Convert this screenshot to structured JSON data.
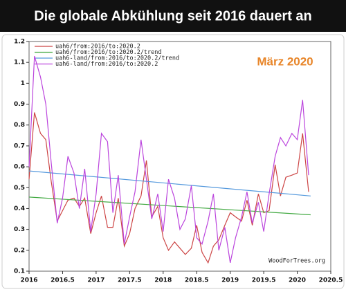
{
  "chart_data": {
    "type": "line",
    "title": "Die globale Abkühlung seit 2016 dauert an",
    "annotation": "März 2020",
    "source": "WoodForTrees.org",
    "x": [
      2016,
      2016.08,
      2016.17,
      2016.25,
      2016.33,
      2016.42,
      2016.5,
      2016.58,
      2016.67,
      2016.75,
      2016.83,
      2016.92,
      2017,
      2017.08,
      2017.17,
      2017.25,
      2017.33,
      2017.42,
      2017.5,
      2017.58,
      2017.67,
      2017.75,
      2017.83,
      2017.92,
      2018,
      2018.08,
      2018.17,
      2018.25,
      2018.33,
      2018.42,
      2018.5,
      2018.58,
      2018.67,
      2018.75,
      2018.83,
      2018.92,
      2019,
      2019.08,
      2019.17,
      2019.25,
      2019.33,
      2019.42,
      2019.5,
      2019.58,
      2019.67,
      2019.75,
      2019.83,
      2019.92,
      2020,
      2020.08,
      2020.17
    ],
    "series": [
      {
        "name": "uah6/from:2016/to:2020.2",
        "color": "#cc4444",
        "values": [
          0.54,
          0.86,
          0.76,
          0.73,
          0.53,
          0.34,
          0.39,
          0.44,
          0.45,
          0.41,
          0.45,
          0.28,
          0.38,
          0.46,
          0.31,
          0.31,
          0.45,
          0.22,
          0.28,
          0.4,
          0.46,
          0.63,
          0.36,
          0.41,
          0.26,
          0.2,
          0.24,
          0.21,
          0.18,
          0.21,
          0.32,
          0.19,
          0.14,
          0.22,
          0.25,
          0.32,
          0.38,
          0.36,
          0.34,
          0.44,
          0.32,
          0.47,
          0.38,
          0.39,
          0.61,
          0.46,
          0.55,
          0.56,
          0.57,
          0.76,
          0.48
        ]
      },
      {
        "name": "uah6/from:2016/to:2020.2/trend",
        "color": "#44aa44",
        "x": [
          2016,
          2020.2
        ],
        "values": [
          0.455,
          0.37
        ]
      },
      {
        "name": "uah6-land/from:2016/to:2020.2/trend",
        "color": "#5599dd",
        "x": [
          2016,
          2020.2
        ],
        "values": [
          0.58,
          0.46
        ]
      },
      {
        "name": "uah6-land/from:2016/to:2020.2",
        "color": "#bb44dd",
        "values": [
          0.6,
          1.13,
          1.03,
          0.9,
          0.62,
          0.33,
          0.45,
          0.65,
          0.57,
          0.4,
          0.59,
          0.29,
          0.47,
          0.76,
          0.72,
          0.38,
          0.56,
          0.23,
          0.36,
          0.48,
          0.73,
          0.54,
          0.35,
          0.47,
          0.29,
          0.54,
          0.45,
          0.3,
          0.35,
          0.51,
          0.26,
          0.23,
          0.34,
          0.47,
          0.2,
          0.31,
          0.14,
          0.26,
          0.36,
          0.48,
          0.33,
          0.43,
          0.29,
          0.47,
          0.65,
          0.74,
          0.7,
          0.76,
          0.73,
          0.92,
          0.56
        ]
      }
    ],
    "xlim": [
      2016,
      2020.5
    ],
    "xticks": [
      2016,
      2016.5,
      2017,
      2017.5,
      2018,
      2018.5,
      2019,
      2019.5,
      2020,
      2020.5
    ],
    "ylim": [
      0.1,
      1.2
    ],
    "yticks": [
      0.1,
      0.2,
      0.3,
      0.4,
      0.5,
      0.6,
      0.7,
      0.8,
      0.9,
      1,
      1.1,
      1.2
    ]
  }
}
